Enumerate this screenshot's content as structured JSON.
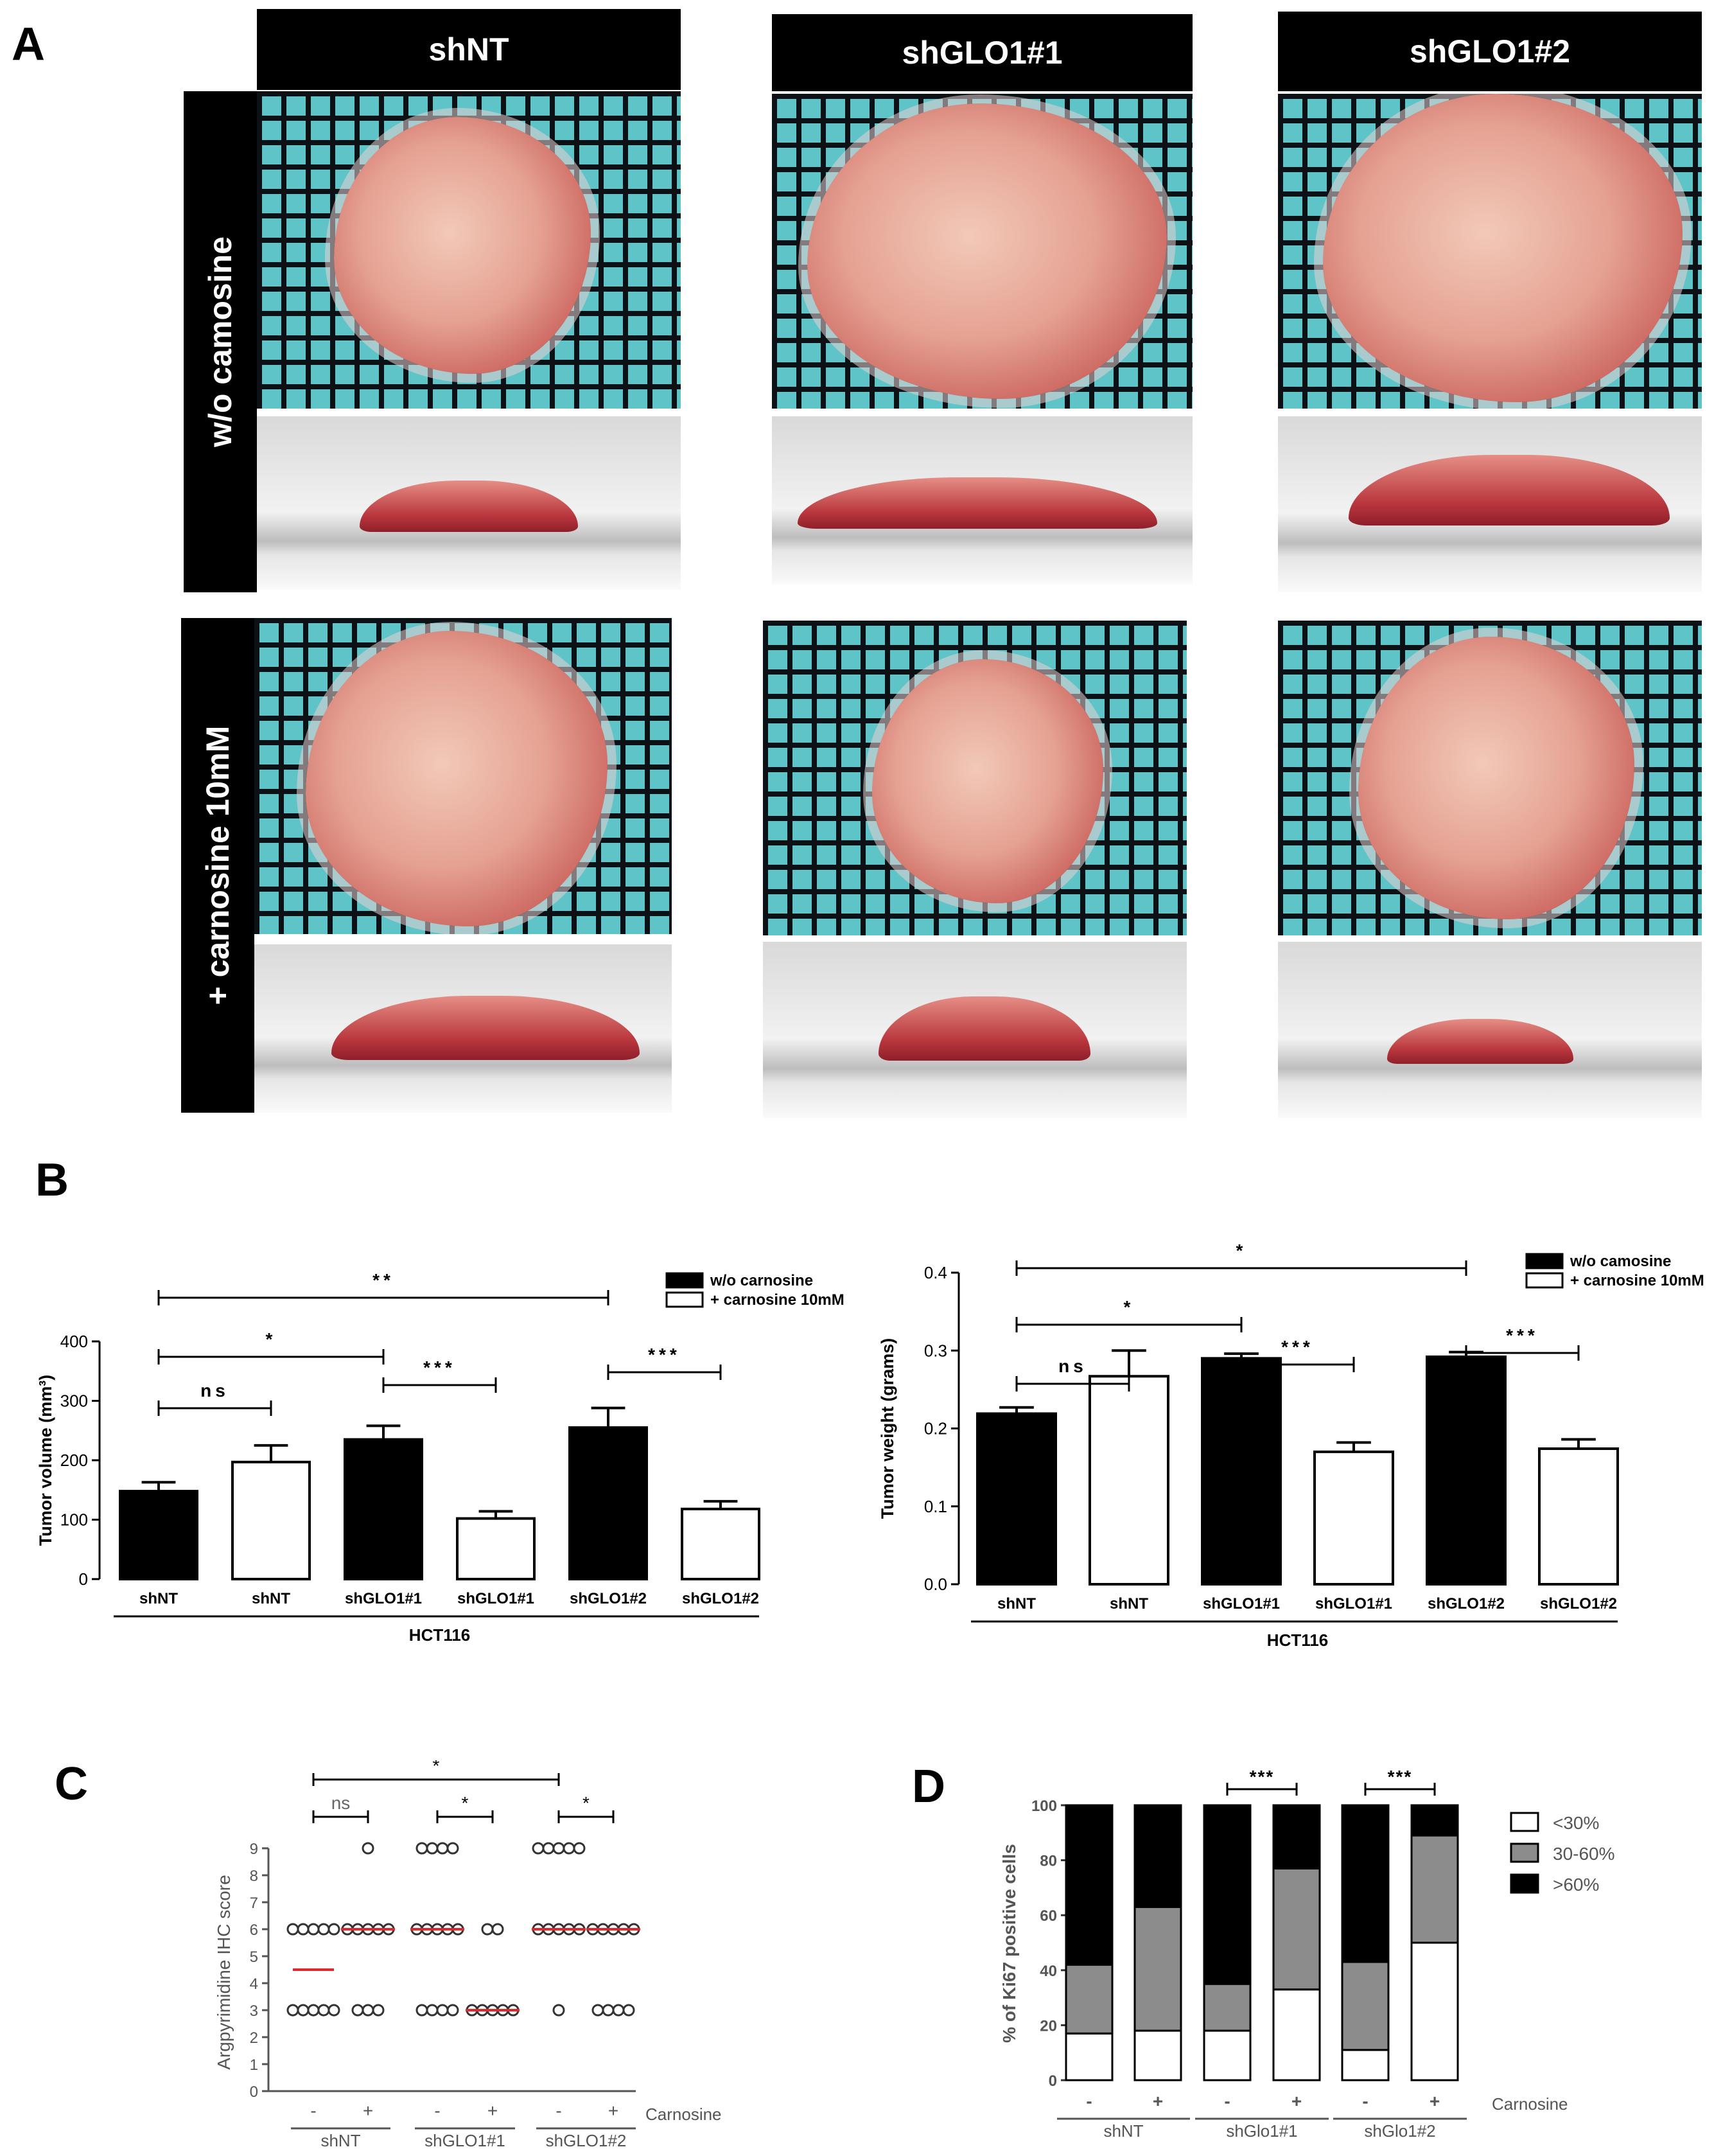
{
  "panel_labels": {
    "a": "A",
    "b": "B",
    "c": "C",
    "d": "D"
  },
  "panel_a": {
    "columns": [
      "shNT",
      "shGLO1#1",
      "shGLO1#2"
    ],
    "rows": [
      "w/o camosine",
      "+ carnosine 10mM"
    ]
  },
  "chart_data": [
    {
      "id": "B-left",
      "type": "bar",
      "categories": [
        "shNT",
        "shNT",
        "shGLO1#1",
        "shGLO1#1",
        "shGLO1#2",
        "shGLO1#2"
      ],
      "values": [
        148,
        197,
        235,
        102,
        255,
        118
      ],
      "errors": [
        15,
        28,
        23,
        12,
        33,
        13
      ],
      "fill": [
        "black",
        "white",
        "black",
        "white",
        "black",
        "white"
      ],
      "ylabel": "Tumor volume (mm³)",
      "xlabel": "HCT116",
      "ylim": [
        0,
        400
      ],
      "yticks": [
        "0",
        "100",
        "200",
        "300",
        "400"
      ],
      "legend": [
        {
          "label": "w/o carnosine",
          "fill": "black"
        },
        {
          "label": "+ carnosine 10mM",
          "fill": "white"
        }
      ],
      "significance": [
        {
          "from": 0,
          "to": 4,
          "label": "**"
        },
        {
          "from": 0,
          "to": 2,
          "label": "*"
        },
        {
          "from": 0,
          "to": 1,
          "label": "ns"
        },
        {
          "from": 2,
          "to": 3,
          "label": "***"
        },
        {
          "from": 4,
          "to": 5,
          "label": "***"
        }
      ]
    },
    {
      "id": "B-right",
      "type": "bar",
      "categories": [
        "shNT",
        "shNT",
        "shGLO1#1",
        "shGLO1#1",
        "shGLO1#2",
        "shGLO1#2"
      ],
      "values": [
        0.219,
        0.267,
        0.29,
        0.17,
        0.292,
        0.174
      ],
      "errors": [
        0.008,
        0.033,
        0.006,
        0.012,
        0.006,
        0.012
      ],
      "fill": [
        "black",
        "white",
        "black",
        "white",
        "black",
        "white"
      ],
      "ylabel": "Tumor weight (grams)",
      "xlabel": "HCT116",
      "ylim": [
        0,
        0.4
      ],
      "yticks": [
        "0.0",
        "0.1",
        "0.2",
        "0.3",
        "0.4"
      ],
      "legend": [
        {
          "label": "w/o camosine",
          "fill": "black"
        },
        {
          "label": "+ carnosine 10mM",
          "fill": "white"
        }
      ],
      "significance": [
        {
          "from": 0,
          "to": 4,
          "label": "*"
        },
        {
          "from": 0,
          "to": 2,
          "label": "*"
        },
        {
          "from": 0,
          "to": 1,
          "label": "ns"
        },
        {
          "from": 2,
          "to": 3,
          "label": "***"
        },
        {
          "from": 4,
          "to": 5,
          "label": "***"
        }
      ]
    },
    {
      "id": "C",
      "type": "scatter",
      "ylabel": "Argpyrimidine IHC score",
      "ylim": [
        0,
        9
      ],
      "yticks": [
        "0",
        "1",
        "2",
        "3",
        "4",
        "5",
        "6",
        "7",
        "8",
        "9"
      ],
      "group_ticks": [
        "-",
        "+",
        "-",
        "+",
        "-",
        "+"
      ],
      "group_labels": [
        "shNT",
        "shGLO1#1",
        "shGLO1#2"
      ],
      "row_label": "Carnosine",
      "groups": [
        {
          "points": {
            "3": 5,
            "6": 5
          },
          "median": 4.5
        },
        {
          "points": {
            "3": 3,
            "6": 5,
            "9": 1
          },
          "median": 6
        },
        {
          "points": {
            "3": 4,
            "6": 5,
            "9": 4
          },
          "median": 6
        },
        {
          "points": {
            "3": 5,
            "6": 2
          },
          "median": 3
        },
        {
          "points": {
            "3": 1,
            "6": 5,
            "9": 5
          },
          "median": 6
        },
        {
          "points": {
            "3": 4,
            "6": 5
          },
          "median": 6
        }
      ],
      "significance": [
        {
          "from": 0,
          "to": 4,
          "label": "*"
        },
        {
          "from": 0,
          "to": 1,
          "label": "ns"
        },
        {
          "from": 2,
          "to": 3,
          "label": "*"
        },
        {
          "from": 4,
          "to": 5,
          "label": "*"
        }
      ]
    },
    {
      "id": "D",
      "type": "bar",
      "stacked": true,
      "ylabel": "% of Ki67 positive cells",
      "ylim": [
        0,
        100
      ],
      "yticks": [
        "0",
        "20",
        "40",
        "60",
        "80",
        "100"
      ],
      "group_ticks": [
        "-",
        "+",
        "-",
        "+",
        "-",
        "+"
      ],
      "group_labels": [
        "shNT",
        "shGlo1#1",
        "shGlo1#2"
      ],
      "row_label": "Carnosine",
      "series": [
        {
          "name": "<30%",
          "color": "#ffffff",
          "values": [
            17,
            18,
            18,
            33,
            11,
            50
          ]
        },
        {
          "name": "30-60%",
          "color": "#8c8c8c",
          "values": [
            25,
            45,
            17,
            44,
            32,
            39
          ]
        },
        {
          "name": ">60%",
          "color": "#000000",
          "values": [
            58,
            37,
            65,
            23,
            57,
            11
          ]
        }
      ],
      "significance": [
        {
          "from": 2,
          "to": 3,
          "label": "***"
        },
        {
          "from": 4,
          "to": 5,
          "label": "***"
        }
      ]
    }
  ]
}
